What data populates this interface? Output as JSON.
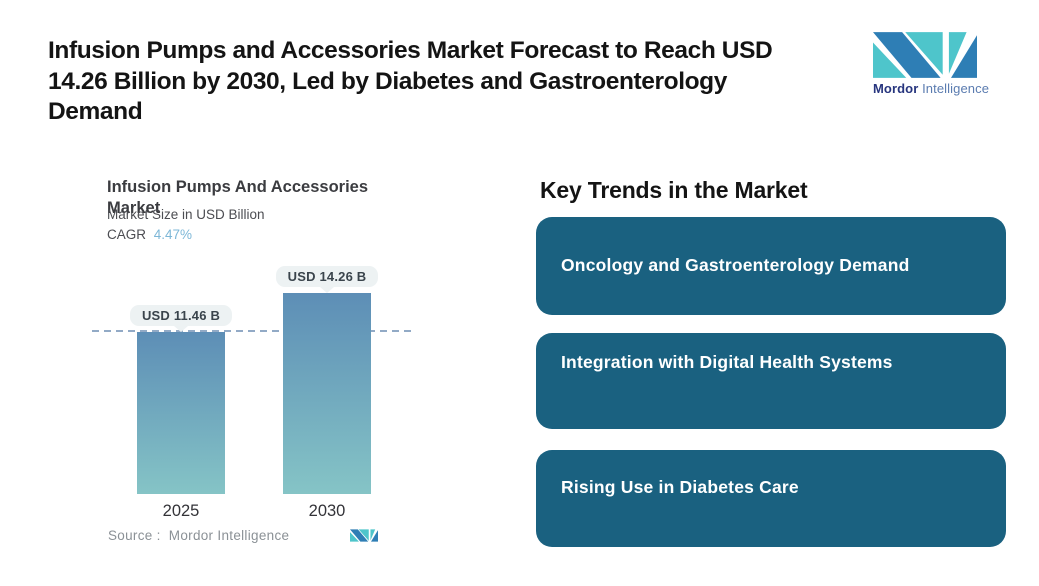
{
  "header": {
    "title": "Infusion Pumps and Accessories Market Forecast to Reach USD 14.26 Billion by 2030, Led by Diabetes and Gastroenterology Demand",
    "title_lines": [
      "Infusion Pumps and Accessories Market Forecast to Reach USD",
      "14.26 Billion by 2030, Led by Diabetes and Gastroenterology",
      "Demand"
    ]
  },
  "brand": {
    "name_bold": "Mordor",
    "name_light": "Intelligence",
    "colors": {
      "logo_blue": "#2e7eb5",
      "logo_teal": "#4ec5cb",
      "text_bold": "#27357e",
      "text_light": "#5b7cb0"
    }
  },
  "chart": {
    "title_lines": [
      "Infusion Pumps And Accessories",
      "Market"
    ],
    "subtitle": "Market Size in USD Billion",
    "cagr_label": "CAGR",
    "cagr_value": "4.47%",
    "source_label": "Source :",
    "source_value": "Mordor Intelligence"
  },
  "chart_data": {
    "type": "bar",
    "title": "Infusion Pumps And Accessories Market",
    "ylabel": "Market Size in USD Billion",
    "categories": [
      "2025",
      "2030"
    ],
    "values": [
      11.46,
      14.26
    ],
    "bar_labels": [
      "USD 11.46 B",
      "USD 14.26 B"
    ],
    "cagr_percent": 4.47,
    "reference_line_value": 11.46,
    "ylim": [
      0,
      14.9
    ],
    "grid": false,
    "colors": {
      "bar_top": "#5d8eb6",
      "bar_bottom": "#85c4c6",
      "dash_line": "#92aac6",
      "label_pill_bg": "#edf2f3"
    }
  },
  "trends": {
    "heading": "Key Trends in the Market",
    "card_color": "#1a6180",
    "cards": [
      {
        "label": "Oncology and Gastroenterology Demand"
      },
      {
        "label": "Integration with Digital Health Systems"
      },
      {
        "label": "Rising Use in Diabetes Care"
      }
    ]
  }
}
